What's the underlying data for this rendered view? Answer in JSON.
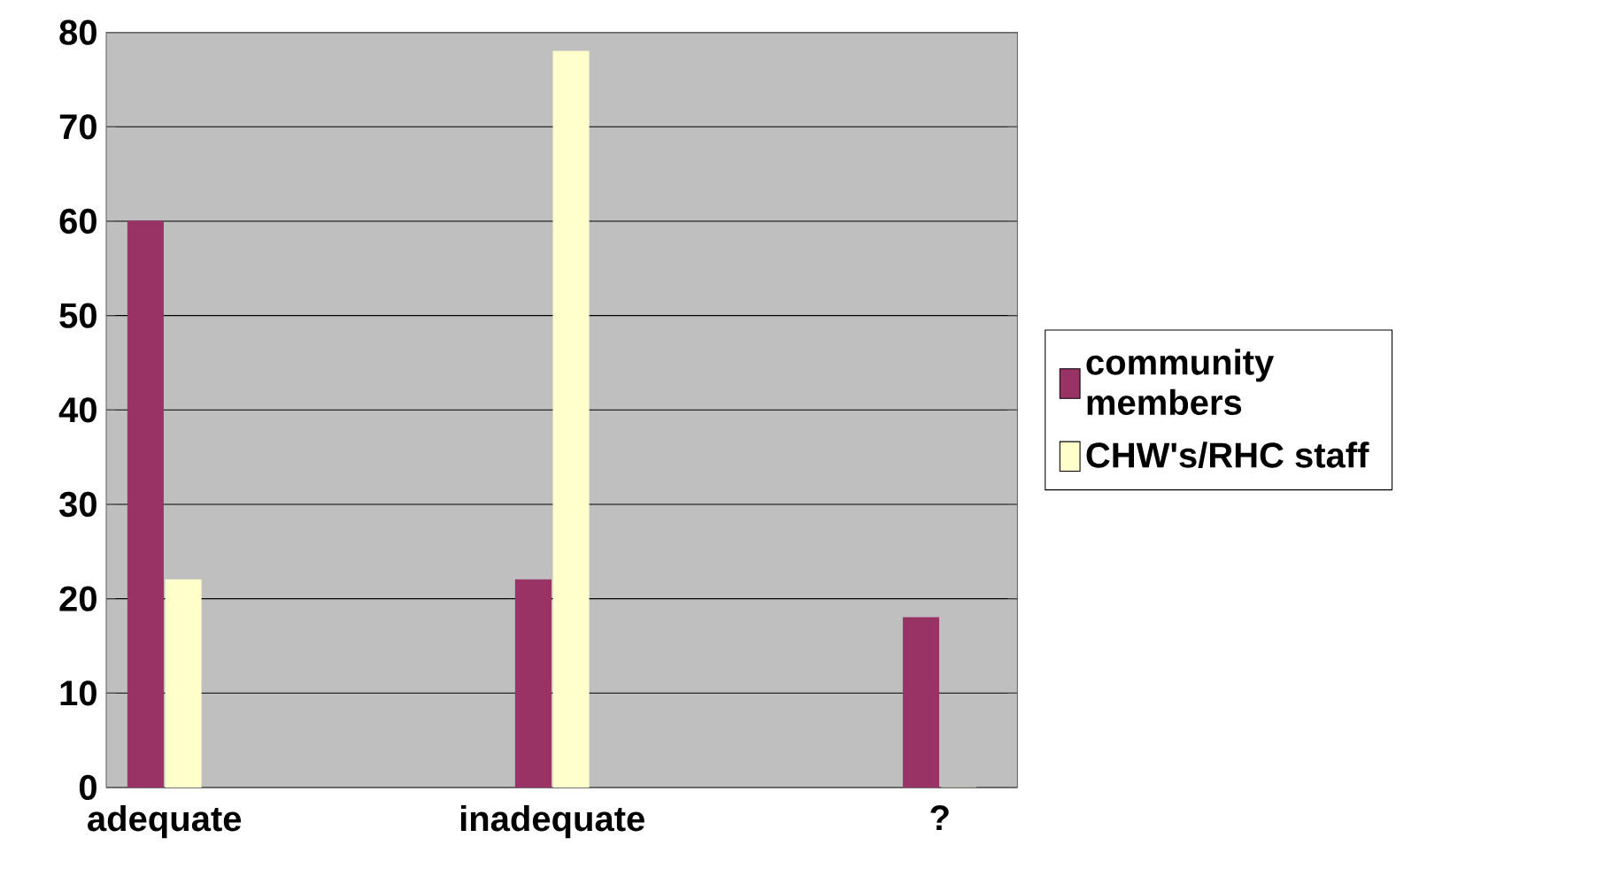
{
  "chart_data": {
    "type": "bar",
    "categories": [
      "adequate",
      "inadequate",
      "?"
    ],
    "series": [
      {
        "name": "community members",
        "color": "#993366",
        "values": [
          60,
          22,
          18
        ]
      },
      {
        "name": "CHW's/RHC staff",
        "color": "#ffffcc",
        "values": [
          22,
          78,
          0
        ]
      }
    ],
    "ylim": [
      0,
      80
    ],
    "yticks": [
      0,
      10,
      20,
      30,
      40,
      50,
      60,
      70,
      80
    ],
    "grid": "y",
    "legend": "right"
  }
}
